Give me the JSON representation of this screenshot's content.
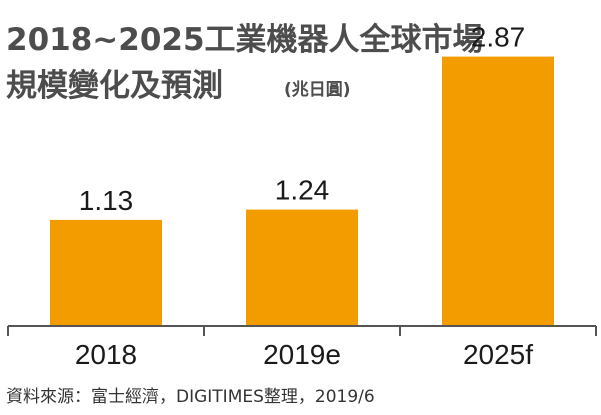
{
  "chart_data": {
    "type": "bar",
    "title": "2018~2025工業機器人全球市場",
    "subtitle": "規模變化及預測",
    "unit": "(兆日圓)",
    "categories": [
      "2018",
      "2019e",
      "2025f"
    ],
    "values": [
      1.13,
      1.24,
      2.87
    ],
    "value_labels": [
      "1.13",
      "1.24",
      "2.87"
    ],
    "ylim": [
      0,
      3.1
    ],
    "grid": false,
    "legend": "none",
    "source": "資料來源：富士經濟，DIGITIMES整理，2019/6"
  },
  "colors": {
    "bar": "#f39c00",
    "axis": "#555555",
    "title": "#4d4d4d",
    "text": "#1a1a1a"
  }
}
